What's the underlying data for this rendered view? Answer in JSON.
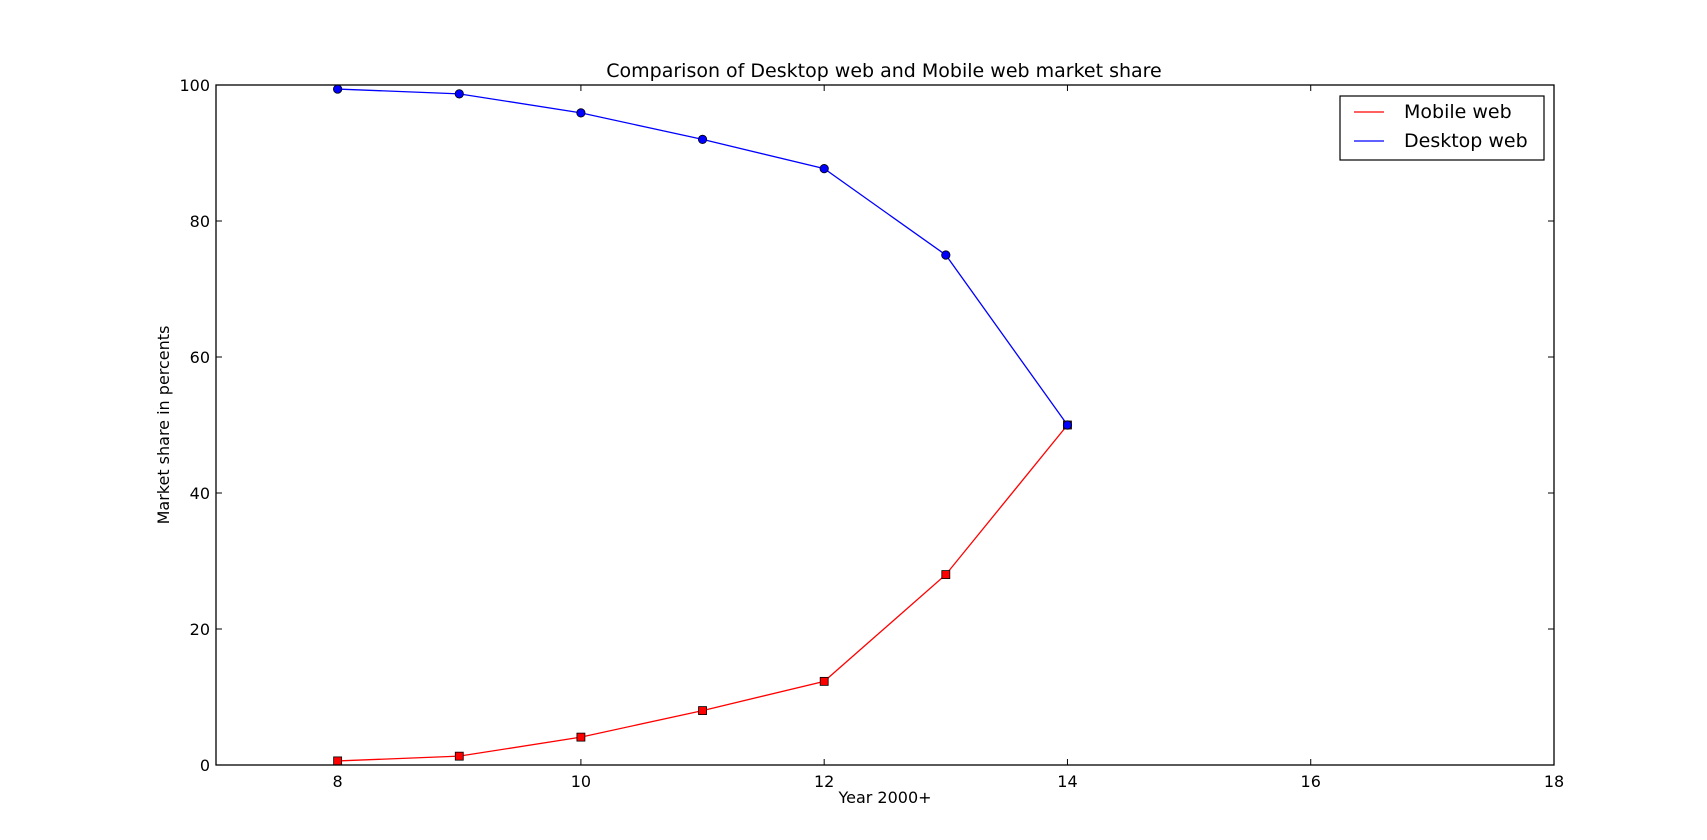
{
  "chart_data": {
    "type": "line",
    "title": "Comparison of Desktop web and Mobile web market share",
    "xlabel": "Year 2000+",
    "ylabel": "Market share in percents",
    "xlim": [
      7,
      18
    ],
    "ylim": [
      0,
      100
    ],
    "xticks": [
      8,
      10,
      12,
      14,
      16,
      18
    ],
    "yticks": [
      0,
      20,
      40,
      60,
      80,
      100
    ],
    "grid": false,
    "legend_position": "top-right",
    "x": [
      8,
      9,
      10,
      11,
      12,
      13,
      14
    ],
    "series": [
      {
        "name": "Mobile web",
        "color": "#ff0000",
        "marker": "square",
        "values": [
          0.6,
          1.3,
          4.1,
          8.0,
          12.3,
          28.0,
          50.0
        ]
      },
      {
        "name": "Desktop web",
        "color": "#0000ff",
        "marker": "circle",
        "values": [
          99.4,
          98.7,
          95.9,
          92.0,
          87.7,
          75.0,
          50.0
        ]
      }
    ]
  }
}
